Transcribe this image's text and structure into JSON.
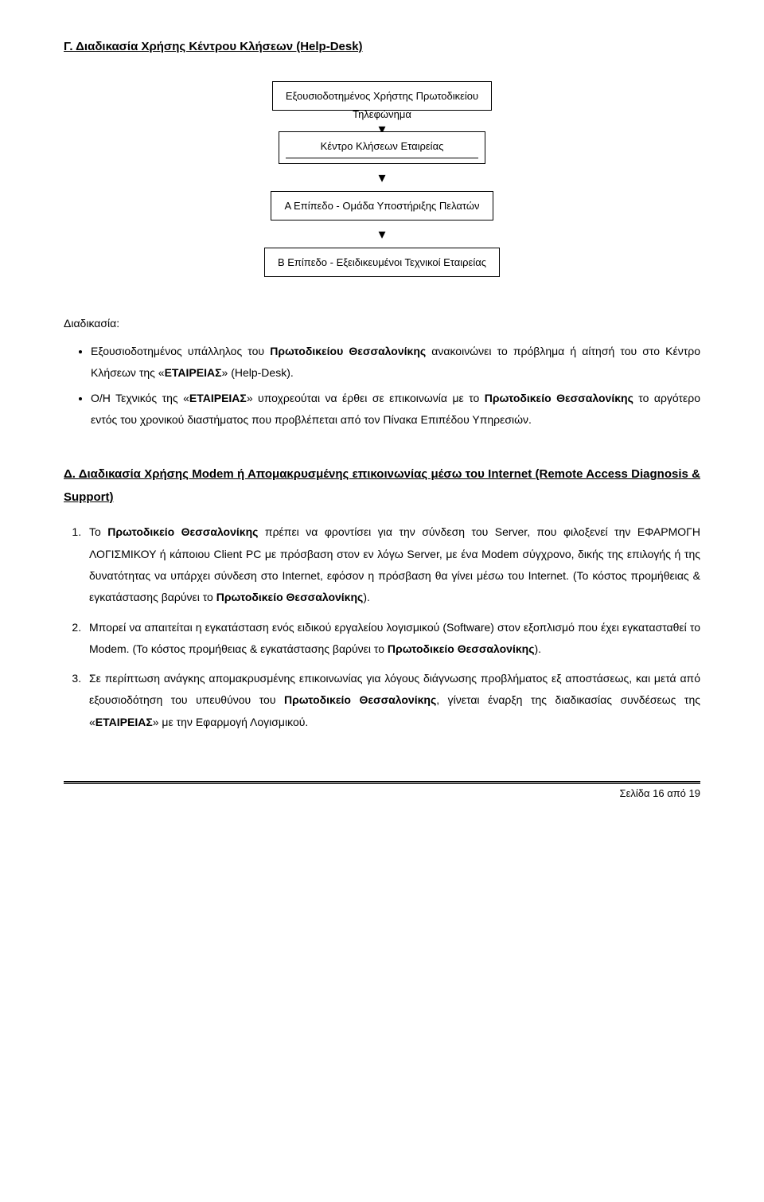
{
  "section_c": {
    "title": "Γ. Διαδικασία Χρήσης Κέντρου Κλήσεων (Help-Desk)",
    "flow": {
      "box1": "Εξουσιοδοτημένος Χρήστης Πρωτοδικείου",
      "label1": "Τηλεφώνημα",
      "box2": "Κέντρο Κλήσεων Εταιρείας",
      "box3": "Α Επίπεδο  - Ομάδα Υποστήριξης Πελατών",
      "box4": "Β Επίπεδο  - Εξειδικευμένοι Τεχνικοί Εταιρείας"
    },
    "procedure_label": "Διαδικασία:",
    "bullets": [
      {
        "pre": "Εξουσιοδοτημένος υπάλληλος του ",
        "bold1": "Πρωτοδικείου Θεσσαλονίκης",
        "mid": "  ανακοινώνει το πρόβλημα ή αίτησή του στο Κέντρο Κλήσεων της «",
        "bold2": "ΕΤΑΙΡΕΙΑΣ",
        "post": "» (Help-Desk)."
      },
      {
        "pre": "Ο/Η Τεχνικός της «",
        "bold1": "ΕΤΑΙΡΕΙΑΣ",
        "mid": "»   υποχρεούται να έρθει σε επικοινωνία με το ",
        "bold2": "Πρωτοδικείο Θεσσαλονίκης",
        "post": " το αργότερο εντός του χρονικού διαστήματος που προβλέπεται από τον Πίνακα Επιπέδου Υπηρεσιών."
      }
    ]
  },
  "section_d": {
    "title": "Δ. Διαδικασία Χρήσης Modem ή Απομακρυσμένης επικοινωνίας μέσω του Internet (Remote Access Diagnosis & Support)",
    "items": [
      {
        "parts": [
          {
            "t": "Το ",
            "b": false
          },
          {
            "t": "Πρωτοδικείο Θεσσαλονίκης",
            "b": true
          },
          {
            "t": " πρέπει να φροντίσει για την σύνδεση του Server, που φιλοξενεί την ΕΦΑΡΜΟΓΗ ΛΟΓΙΣΜΙΚΟΥ ή κάποιου Client PC με πρόσβαση στον εν λόγω Server, με ένα Modem σύγχρονο, δικής της επιλογής ή της δυνατότητας να υπάρχει σύνδεση στο Internet, εφόσον η πρόσβαση θα γίνει μέσω του Internet. (Το κόστος προμήθειας & εγκατάστασης βαρύνει το ",
            "b": false
          },
          {
            "t": "Πρωτοδικείο Θεσσαλονίκης",
            "b": true
          },
          {
            "t": ").",
            "b": false
          }
        ]
      },
      {
        "parts": [
          {
            "t": "Μπορεί να απαιτείται  η εγκατάσταση ενός ειδικού εργαλείου λογισμικού (Software) στον εξοπλισμό που έχει εγκατασταθεί το Modem. (Το κόστος προμήθειας & εγκατάστασης βαρύνει το ",
            "b": false
          },
          {
            "t": "Πρωτοδικείο Θεσσαλονίκης",
            "b": true
          },
          {
            "t": ").",
            "b": false
          }
        ]
      },
      {
        "parts": [
          {
            "t": "Σε περίπτωση ανάγκης απομακρυσμένης επικοινωνίας για λόγους διάγνωσης προβλήματος εξ αποστάσεως, και μετά από εξουσιοδότηση του υπευθύνου του ",
            "b": false
          },
          {
            "t": "Πρωτοδικείο Θεσσαλονίκης",
            "b": true
          },
          {
            "t": ", γίνεται έναρξη της διαδικασίας συνδέσεως της «",
            "b": false
          },
          {
            "t": "ΕΤΑΙΡΕΙΑΣ",
            "b": true
          },
          {
            "t": "» με την Εφαρμογή Λογισμικού.",
            "b": false
          }
        ]
      }
    ]
  },
  "footer": {
    "text": "Σελίδα 16 από 19"
  }
}
